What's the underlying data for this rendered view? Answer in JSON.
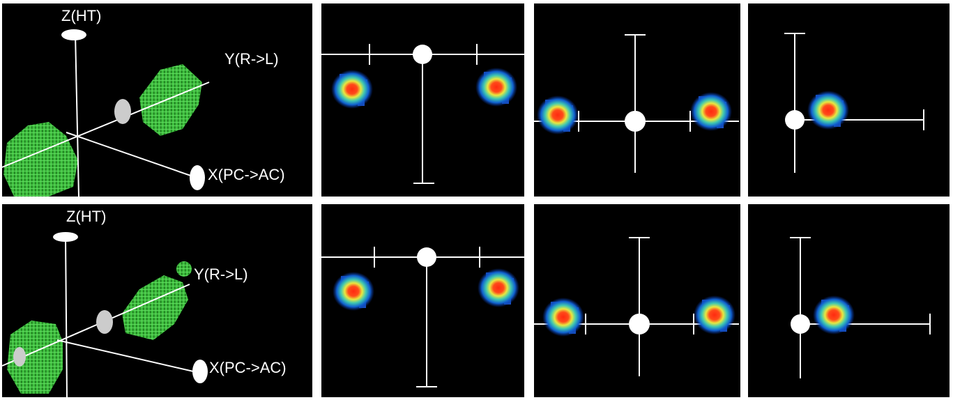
{
  "rows": [
    {
      "z_label": "Z(HT)",
      "y_label": "Y(R->L)",
      "x_label": "X(PC->AC)"
    },
    {
      "z_label": "Z(HT)",
      "y_label": "Y(R->L)",
      "x_label": "X(PC->AC)"
    }
  ]
}
